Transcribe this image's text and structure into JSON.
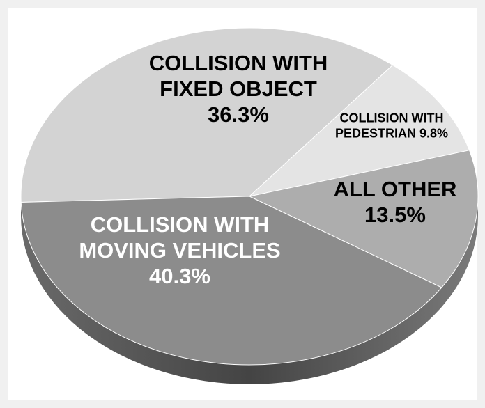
{
  "chart_data": {
    "type": "pie",
    "categories": [
      "COLLISION WITH FIXED OBJECT",
      "COLLISION WITH PEDESTRIAN",
      "ALL OTHER",
      "COLLISION WITH MOVING VEHICLES"
    ],
    "values": [
      36.3,
      9.8,
      13.5,
      40.3
    ],
    "value_labels": [
      "36.3%",
      "9.8%",
      "13.5%",
      "40.3%"
    ],
    "colors": [
      "#d3d3d3",
      "#e4e4e4",
      "#adadad",
      "#8c8c8c"
    ],
    "label_colors": [
      "#000000",
      "#000000",
      "#000000",
      "#ffffff"
    ]
  }
}
